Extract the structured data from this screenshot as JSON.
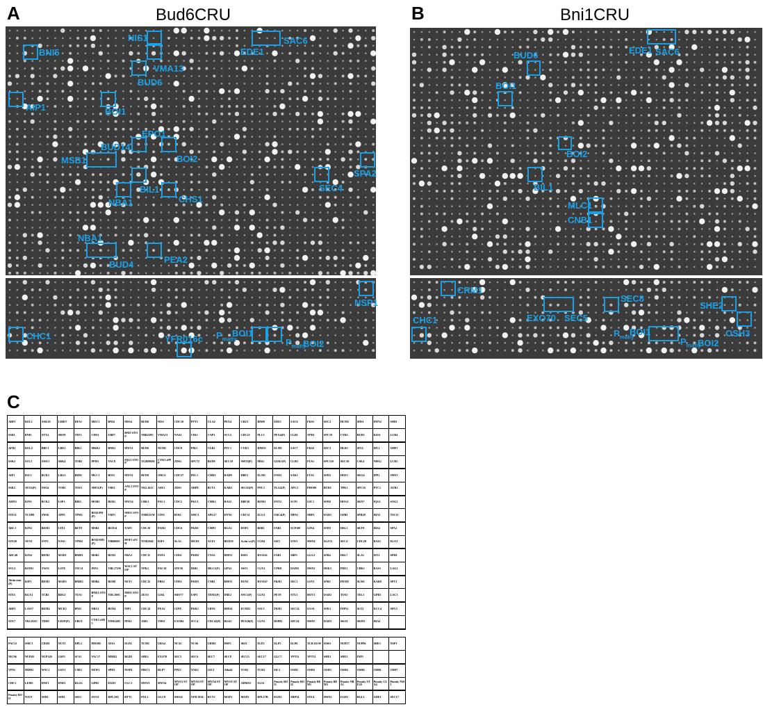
{
  "figure": {
    "panel_a": {
      "letter": "A",
      "title": "Bud6CRU"
    },
    "panel_b": {
      "letter": "B",
      "title": "Bni1CRU"
    },
    "panel_c": {
      "letter": "C"
    }
  },
  "plates": {
    "a_main_labels": [
      "NIS1",
      "EDE1",
      "SAC6",
      "BNI5",
      "VMA13",
      "BUD6",
      "AIP1",
      "BOI1",
      "EPO1",
      "BUD14",
      "BOI2",
      "MSB1",
      "SPA2",
      "SEC4",
      "BIL1",
      "NBA1",
      "CHS1",
      "NBA1",
      "BUD4",
      "PEA2"
    ],
    "a_bottom_labels": [
      "NSP1",
      "CHC1",
      "YFR016c",
      "BOI1",
      "BOI2"
    ],
    "a_bottom_pmatiy": "P",
    "a_bottom_pmatiy_sub": "matiy",
    "b_main_labels": [
      "EDE1",
      "SAC6",
      "BUD6",
      "BOI1",
      "BOI2",
      "BIL1",
      "MLC1",
      "CNB1"
    ],
    "b_bottom_labels": [
      "CRM1",
      "SEC8",
      "EXO70",
      "SEC5",
      "SHE2",
      "CHC1",
      "OSH3",
      "BOI1",
      "BOI2"
    ]
  },
  "grid_c": {
    "upper": [
      [
        "ABP1",
        "KEL1",
        "ASK10",
        "LDB17",
        "DFA1",
        "MEC1",
        "BNI4",
        "MSS4",
        "BUD6",
        "NIS1",
        "CDC10",
        "PFY1",
        "CLA4",
        "PEX4",
        "CRZ1",
        "BIM8",
        "EDE1",
        "SAC6",
        "FKS1",
        "SEC2",
        "HCM1",
        "SHS1",
        "INP52",
        "SMI1"
      ],
      [
        "SSD1",
        "BNI5",
        "STT4",
        "SRO9",
        "TEF1",
        "CHS3",
        "UBP7",
        "BNI5 STOP",
        "YBR239C",
        "VMA13",
        "NAS2",
        "CIK1",
        "CAP1",
        "SCC2",
        "CDC25",
        "PLC1",
        "PEX4(P)",
        "CLB1",
        "YPD1",
        "SPC19",
        "CYR1",
        "BUD3",
        "KSS1",
        "LCB4"
      ],
      [
        "AFR1",
        "KEL2",
        "BBC1",
        "LRE1",
        "BIK1",
        "MKK1",
        "BNR1",
        "MYO1",
        "BUD6",
        "NUM1",
        "CDC8",
        "PIK1",
        "CLB1",
        "PTC1",
        "CYK3",
        "RIM11",
        "ELM1",
        "SAC7",
        "FKS2",
        "SEC3",
        "HLR1",
        "SIT4",
        "IPL1",
        "SMP1"
      ],
      [
        "SSK2",
        "SVL3",
        "SWE1",
        "SRK4",
        "TOR1",
        "PPH3",
        "VAC8",
        "IQG1 STOP",
        "YGR086W",
        "CYK3 sPPP",
        "ZDS1",
        "SPC72",
        "BUD8",
        "SEC18",
        "SMT4(P)",
        "PBS1",
        "GUK1(P)",
        "CLB3",
        "PUS1",
        "SPC110",
        "SEC10",
        "CSE4",
        "NHA1",
        "LCB3"
      ],
      [
        "AIP1",
        "KIC1",
        "BCK1",
        "LRG1",
        "BIM1",
        "MLC1",
        "BOI1",
        "MYO1",
        "BUD9",
        "ORC6",
        "CDC37",
        "PEL1",
        "CMD1",
        "RAD9",
        "DBF2",
        "ELM1",
        "END3",
        "SAK1",
        "FUS1",
        "SFH1",
        "HOF1",
        "SKG4",
        "IPP1",
        "SMY1"
      ],
      [
        "SSK2",
        "AVO2(P)",
        "SWI4",
        "TOR1",
        "TOS3",
        "SHO1(P)",
        "VBS1",
        "AXL1 STOP",
        "YKL161C",
        "ASE1",
        "ZDS1",
        "ARP8",
        "BCY1",
        "KAR3",
        "SEC63(P)",
        "PNC1",
        "TLG2(P)",
        "APC2",
        "PHO80",
        "BUD1",
        "TPK1",
        "SPC10",
        "PTC1",
        "AUR1"
      ],
      [
        "AMN1",
        "KIN1",
        "BCK2",
        "LSP1",
        "BIR1",
        "MOB1",
        "BUB1",
        "MYO4",
        "CBK1",
        "PAC1",
        "CDC5",
        "PKC1",
        "CMK1",
        "RAS2",
        "DBF20",
        "BOM1",
        "ENT2",
        "SCP1",
        "GIC1",
        "SFH2",
        "HOG1",
        "SKN7",
        "IQG1",
        "SOG2"
      ],
      [
        "STE11",
        "TCO89",
        "SWI6",
        "APP1",
        "TPM1",
        "BOI2/PH (P)",
        "VRP1",
        "SHO1 STOP",
        "YMR111W",
        "CIN5",
        "BOI2",
        "SMC3",
        "APG17",
        "DYN1",
        "CDC31",
        "ELG1",
        "UBC4(P)",
        "MPS1",
        "NBP2",
        "DAD1",
        "GPB1",
        "SPR28",
        "IRA1",
        "TSC11"
      ],
      [
        "ARC1",
        "KIN2",
        "BEM1",
        "LTE1",
        "BET8",
        "MSB1",
        "BUD14",
        "NAP1",
        "CDC10",
        "PAM1",
        "CDC6",
        "PKH1",
        "CMP2",
        "RGA1",
        "DOP1",
        "BSR1",
        "FAR1",
        "SCP160",
        "GIN4",
        "SFH3",
        "HSL1",
        "SKT9",
        "IRS4",
        "SPA2"
      ],
      [
        "STE20",
        "AVO1",
        "SVP1",
        "NAS1",
        "TPM2",
        "BOI2/SH3 (P)",
        "YBR060C",
        "HOF1 sFCH",
        "YOR304C",
        "KIP1",
        "SLA1",
        "MCD1",
        "ACF2",
        "BUD19",
        "Actin wt(P)",
        "CLB4",
        "SIZ1",
        "STE3",
        "MSN4",
        "SLZ15",
        "SEC4",
        "CDC20",
        "RAS1",
        "ELO1"
      ],
      [
        "ARC40",
        "KIN4",
        "BEM2",
        "MAD1",
        "BMH1",
        "MSB3",
        "BUD2",
        "NBA1",
        "CDC11",
        "PAN1",
        "CHS1",
        "PKH2",
        "CNA1",
        "RHO1",
        "DSE1",
        "RVS161",
        "FAR1",
        "SBP1",
        "GLG1",
        "SFB4",
        "HSL7",
        "SLA1",
        "IST2",
        "SPH1"
      ],
      [
        "SVL3",
        "ROM1",
        "TAO3",
        "LST8",
        "TSC11",
        "INN1",
        "YBL172W",
        "WSC1 STOP",
        "YPK1",
        "PAC10",
        "STE50",
        "IRR1",
        "MLC1(P)",
        "GPA2",
        "SSO1",
        "CLN1",
        "CPR8",
        "DAM1",
        "MSN2",
        "HSK3",
        "PDE1",
        "CBK1",
        "RAS1",
        "LAG1"
      ],
      [
        "Aktin mut(P)",
        "KIP1",
        "BEM3",
        "MAD3",
        "BMH2",
        "MSB4",
        "BUD8",
        "NET1",
        "CDC12",
        "PBS2",
        "CHS3",
        "PKH3",
        "CNB1",
        "RHO3",
        "DUN1",
        "RVS167",
        "FKH1",
        "SEC1",
        "GSY1",
        "SFB5",
        "HYM1",
        "SLM1",
        "KAR9",
        "SPT3"
      ],
      [
        "STE5",
        "RGA1",
        "TCB3",
        "BDG1",
        "TUS1",
        "BNR1 STOP",
        "YDL100C",
        "MID1 STOP",
        "ZEO1",
        "GIS4",
        "SRO77",
        "ESP1",
        "TEM1(P)",
        "IME2",
        "SNC1(P)",
        "CLN2",
        "PET9",
        "STU1",
        "HOT1",
        "DAD2",
        "TOS3",
        "TEL1",
        "GPB1",
        "LAC1"
      ],
      [
        "ARP1",
        "LAS17",
        "BEM4",
        "MCK1",
        "BNI1",
        "NBA1",
        "BUD4",
        "NIP1",
        "CDC14",
        "PEA2",
        "CIN8",
        "PKK1",
        "CRN1",
        "RHO4",
        "ECM25",
        "SAC1",
        "FKH1",
        "SEC14",
        "GUS1",
        "SFK1",
        "INP51",
        "SLT2",
        "KCC4",
        "SRV2"
      ],
      [
        "STE7",
        "YKL032C",
        "TDH1",
        "LEEP(P)",
        "UBC9",
        "CYK3 sSH3",
        "YDR348C",
        "PFK1",
        "AIR1",
        "VHS1",
        "EXO84",
        "SCC4",
        "CDC42(P)",
        "RGS2",
        "PEX20(P)",
        "CLN3",
        "RSP82",
        "SPC24",
        "MSN5",
        "DAD3",
        "SKO1",
        "SKM1",
        "IRA2",
        ""
      ]
    ],
    "lower": [
      [
        "PAC11",
        "SMC3",
        "CRM1",
        "NUT1",
        "DPL1",
        "PHO80",
        "ATS1",
        "ELP4",
        "TUM1",
        "UBA4",
        "NCS2",
        "NCS6",
        "URM1",
        "HSP1",
        "SKI1",
        "ELP2",
        "ELP5",
        "ELP6",
        "YLR 031W",
        "SIS01",
        "NUP57",
        "NUP86",
        "SHE1",
        "NSP1"
      ],
      [
        "NIC96",
        "NUP49",
        "NUP149",
        "GSP1",
        "SCS1",
        "VAC17",
        "MMR1",
        "RGD1",
        "SHE2",
        "EXO70",
        "SEC5",
        "SEC6",
        "SEC7",
        "SEC8",
        "SEC15",
        "SEC17",
        "GLC7",
        "YPT11",
        "YPT31",
        "SHE1",
        "SHE3",
        "INP1"
      ],
      [
        "VPS1",
        "MDH1",
        "WSC1",
        "GSY1",
        "CSR1",
        "NEW1",
        "SPH1",
        "NOP4",
        "MKC1",
        "BLP7",
        "PPZ1",
        "YAK1",
        "GIC1",
        "Alfa44",
        "TCB1",
        "TCB3",
        "SIC1",
        "OSH1",
        "OSH2",
        "OSH3",
        "OSH4",
        "OSH6",
        "OSH6",
        "OSH7"
      ],
      [
        "CHC1",
        "LEM3",
        "DNF1",
        "DNF2",
        "RGA1",
        "GPB1",
        "EGD1",
        "CLC1",
        "MYO3",
        "MYO4",
        "MYO1 STOP",
        "MYO3 STOP",
        "MYO4 STOP",
        "MYO5 STOP",
        "ADM10",
        "ULS1",
        "Pmatiy BOI1",
        "Pmatiy BOI2",
        "Pmatiy BEM1",
        "Pmatiy BEM3",
        "Pmatiy NBA1",
        "Pmatiy STE20",
        "Pmatiy CLA4",
        "Pmatiy NIS1"
      ],
      [
        "Pmatiy BOI1",
        "NAT1",
        "SSH1",
        "SSH1",
        "SSE1",
        "ZUO1",
        "RPL10A",
        "BTT1",
        "PXL1",
        "GLC8",
        "SDS22",
        "YFR 016C",
        "RCY1",
        "MAP1",
        "MAP2",
        "RPL17B",
        "EGD2",
        "SRP54",
        "STE4",
        "MSN2",
        "EGD1",
        "BGL1",
        "GDE1",
        "SEC17"
      ]
    ]
  }
}
